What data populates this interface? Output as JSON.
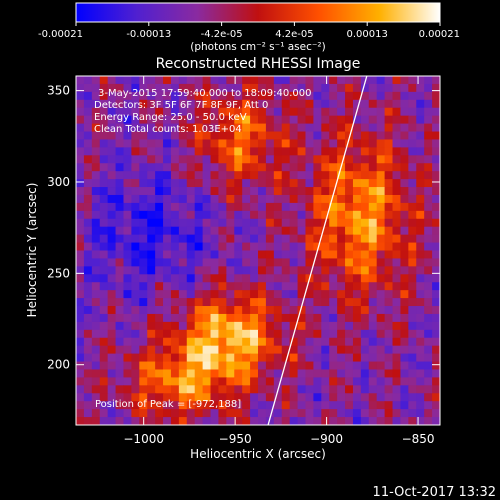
{
  "colorbar": {
    "ticks": [
      "-0.00021",
      "-0.00013",
      "-4.2e-05",
      "4.2e-05",
      "0.00013",
      "0.00021"
    ],
    "unit_label": "(photons cm⁻² s⁻¹ asec⁻²)",
    "range": [
      -0.00021,
      0.00021
    ]
  },
  "chart_data": {
    "type": "heatmap",
    "title": "Reconstructed RHESSI Image",
    "xlabel": "Heliocentric X (arcsec)",
    "ylabel": "Heliocentric Y (arcsec)",
    "xlim": [
      -1037,
      -838
    ],
    "ylim": [
      167,
      358
    ],
    "x_ticks": [
      -1000,
      -950,
      -900,
      -850
    ],
    "y_ticks": [
      200,
      250,
      300,
      350
    ],
    "x_tick_labels": [
      "−1000",
      "−950",
      "−900",
      "−850"
    ],
    "y_tick_labels": [
      "200",
      "250",
      "300",
      "350"
    ],
    "annotations": [
      "3-May-2015 17:59:40.000 to 18:09:40.000",
      "Detectors: 3F 5F 6F 7F 8F 9F, Att 0",
      "Energy Range: 25.0 - 50.0 keV",
      "Clean     Total counts: 1.03E+04"
    ],
    "peak_label": "Position of Peak = [-972,188]",
    "peak": [
      -972,
      188
    ],
    "limb_line": {
      "x": [
        -932,
        -878
      ],
      "y": [
        167,
        358
      ]
    },
    "colormap": [
      "#0000ff",
      "#5020d0",
      "#8a2aa0",
      "#c01010",
      "#ff5000",
      "#ffb000",
      "#ffffff"
    ]
  },
  "footer": {
    "timestamp": "11-Oct-2017 13:32"
  }
}
